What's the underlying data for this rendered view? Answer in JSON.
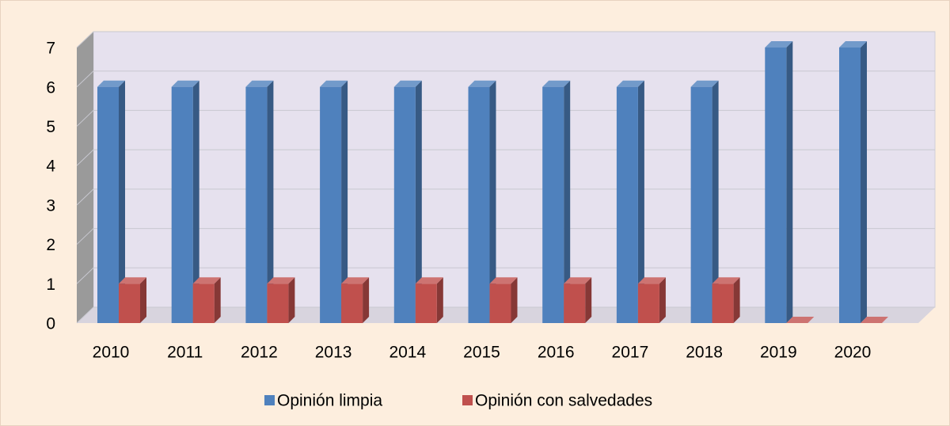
{
  "chart_data": {
    "type": "bar3d",
    "categories": [
      "2010",
      "2011",
      "2012",
      "2013",
      "2014",
      "2015",
      "2016",
      "2017",
      "2018",
      "2019",
      "2020"
    ],
    "series": [
      {
        "name": "Opinión limpia",
        "color": "#4f81bd",
        "values": [
          6,
          6,
          6,
          6,
          6,
          6,
          6,
          6,
          6,
          7,
          7
        ]
      },
      {
        "name": "Opinión con salvedades",
        "color": "#c0504d",
        "values": [
          1,
          1,
          1,
          1,
          1,
          1,
          1,
          1,
          1,
          0,
          0
        ]
      }
    ],
    "ylim": [
      0,
      7
    ],
    "yticks": [
      0,
      1,
      2,
      3,
      4,
      5,
      6,
      7
    ],
    "grid": true,
    "legend": "bottom"
  }
}
